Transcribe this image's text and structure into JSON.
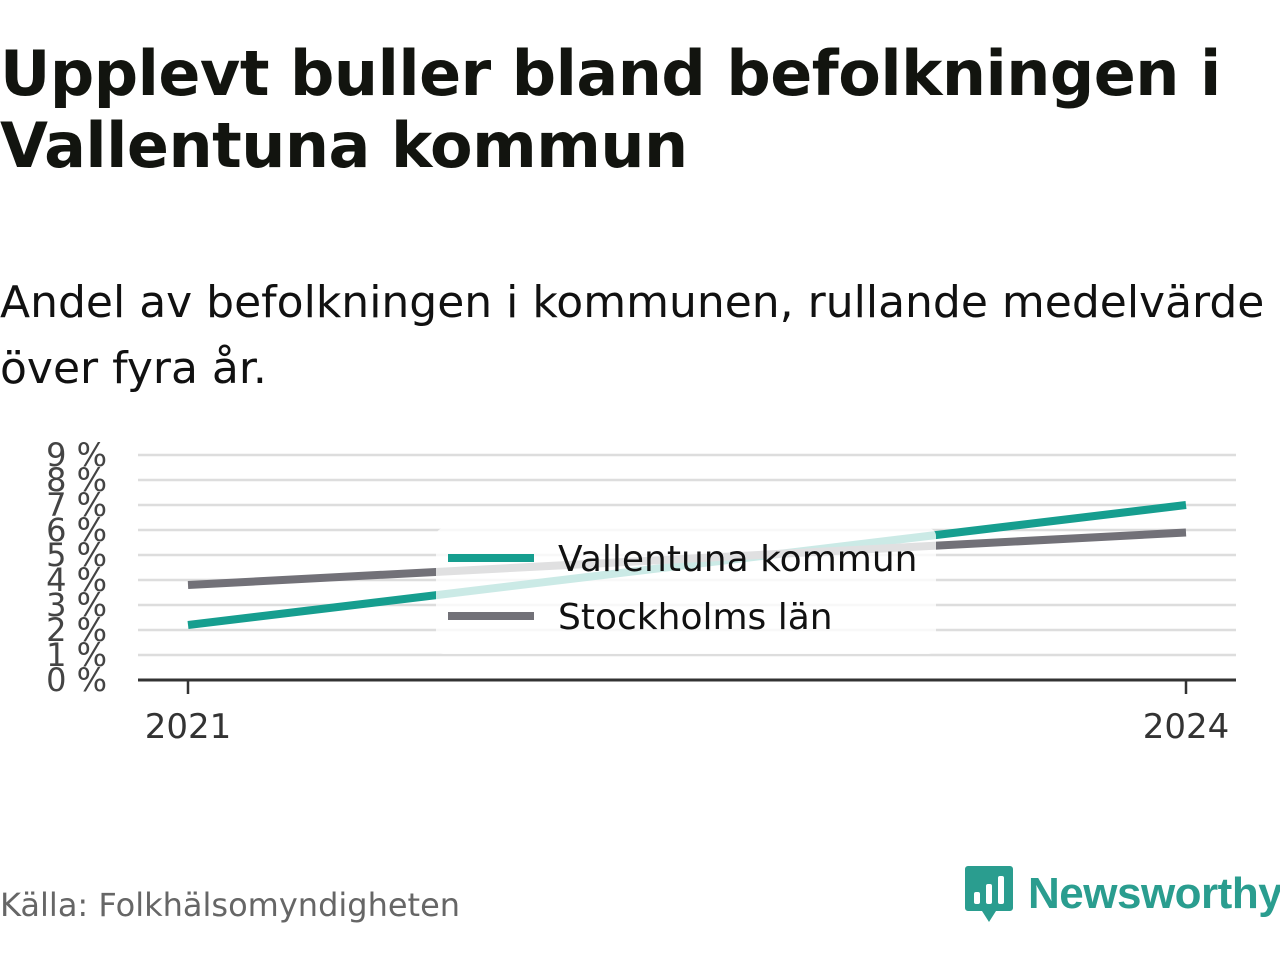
{
  "title": "Upplevt buller bland befolkningen i Vallentuna kommun",
  "subtitle": "Andel av befolkningen i kommunen, rullande medelvärde över fyra år.",
  "source": "Källa: Folkhälsomyndigheten",
  "brand": {
    "name": "Newsworthy",
    "icon": "newsworthy-logo-icon",
    "color": "#2a9d8f"
  },
  "chart_data": {
    "type": "line",
    "x": [
      "2021",
      "2024"
    ],
    "x_ticks": [
      "2021",
      "2024"
    ],
    "y_ticks": [
      "0 %",
      "1 %",
      "2 %",
      "3 %",
      "4 %",
      "5 %",
      "6 %",
      "7 %",
      "8 %",
      "9 %"
    ],
    "ylim": [
      0,
      9
    ],
    "grid": true,
    "legend_position": "center",
    "series": [
      {
        "name": "Vallentuna kommun",
        "values": [
          2.2,
          7.0
        ],
        "color": "#169e8f"
      },
      {
        "name": "Stockholms län",
        "values": [
          3.8,
          5.9
        ],
        "color": "#727178"
      }
    ]
  }
}
